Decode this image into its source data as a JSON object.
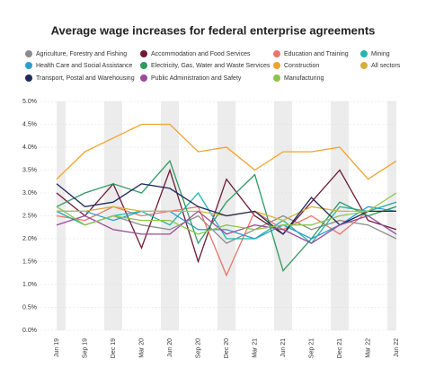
{
  "chart_data": {
    "type": "line",
    "title": "Average wage increases for federal enterprise agreements",
    "categories": [
      "Jun 19",
      "Sep 19",
      "Dec 19",
      "Mar 20",
      "Jun 20",
      "Sep 20",
      "Dec 20",
      "Mar 21",
      "Jun 21",
      "Sep 21",
      "Dec 21",
      "Mar 22",
      "Jun 22"
    ],
    "series": [
      {
        "name": "Agriculture, Forestry and Fishing",
        "color": "#8c8c8c",
        "values": [
          2.6,
          2.3,
          2.5,
          2.3,
          2.2,
          2.5,
          1.9,
          2.2,
          2.5,
          2.2,
          2.4,
          2.3,
          2.0
        ]
      },
      {
        "name": "Accommodation and Food Services",
        "color": "#6d1a36",
        "values": [
          3.0,
          2.5,
          3.2,
          1.8,
          3.5,
          1.5,
          3.3,
          2.5,
          2.1,
          2.8,
          3.5,
          2.4,
          2.2
        ]
      },
      {
        "name": "Education and Training",
        "color": "#e8756b",
        "values": [
          2.5,
          2.4,
          2.7,
          2.5,
          2.6,
          2.7,
          1.2,
          2.6,
          2.2,
          2.5,
          2.1,
          2.6,
          2.8
        ]
      },
      {
        "name": "Mining",
        "color": "#25b5ae",
        "values": [
          2.6,
          2.3,
          2.5,
          2.6,
          2.3,
          3.0,
          2.0,
          2.0,
          2.4,
          1.9,
          2.7,
          2.6,
          2.8
        ]
      },
      {
        "name": "Health Care and Social Assistance",
        "color": "#2b9fd0",
        "values": [
          2.6,
          2.6,
          2.4,
          2.6,
          2.6,
          2.2,
          2.2,
          2.0,
          2.3,
          2.0,
          2.3,
          2.7,
          2.6
        ]
      },
      {
        "name": "Electricity, Gas, Water and Waste Services",
        "color": "#2e9a5f",
        "values": [
          2.7,
          3.0,
          3.2,
          3.0,
          3.7,
          1.9,
          2.8,
          3.4,
          1.3,
          2.0,
          2.8,
          2.5,
          2.7
        ]
      },
      {
        "name": "Construction",
        "color": "#f0a22e",
        "values": [
          3.3,
          3.9,
          4.2,
          4.5,
          4.5,
          3.9,
          4.0,
          3.5,
          3.9,
          3.9,
          4.0,
          3.3,
          3.7
        ]
      },
      {
        "name": "All sectors",
        "color": "#d4b03a",
        "values": [
          2.6,
          2.6,
          2.7,
          2.6,
          2.6,
          2.6,
          2.5,
          2.6,
          2.4,
          2.7,
          2.6,
          2.6,
          2.6
        ]
      },
      {
        "name": "Transport, Postal and Warehousing",
        "color": "#1e2a5a",
        "values": [
          3.2,
          2.7,
          2.8,
          3.2,
          3.1,
          2.7,
          2.5,
          2.6,
          2.1,
          2.9,
          2.3,
          2.6,
          2.6
        ]
      },
      {
        "name": "Public Administration and Safety",
        "color": "#9a4b9a",
        "values": [
          2.3,
          2.5,
          2.2,
          2.1,
          2.1,
          2.6,
          2.1,
          2.3,
          2.2,
          1.9,
          2.3,
          2.5,
          2.1
        ]
      },
      {
        "name": "Manufacturing",
        "color": "#8cc44a",
        "values": [
          2.7,
          2.3,
          2.5,
          2.4,
          2.4,
          2.1,
          2.3,
          2.2,
          2.3,
          2.3,
          2.5,
          2.6,
          3.0
        ]
      }
    ],
    "ylim": [
      0,
      5
    ],
    "yticks": [
      {
        "value": 0,
        "label": "0.0%"
      },
      {
        "value": 0.5,
        "label": "0.5%"
      },
      {
        "value": 1,
        "label": "1.0%"
      },
      {
        "value": 1.5,
        "label": "1.5%"
      },
      {
        "value": 2,
        "label": "2.0%"
      },
      {
        "value": 2.5,
        "label": "2.5%"
      },
      {
        "value": 3,
        "label": "3.0%"
      },
      {
        "value": 3.5,
        "label": "3.5%"
      },
      {
        "value": 4,
        "label": "4.0%"
      },
      {
        "value": 4.5,
        "label": "4.5%"
      },
      {
        "value": 5,
        "label": "5.0%"
      }
    ],
    "grid": true
  }
}
